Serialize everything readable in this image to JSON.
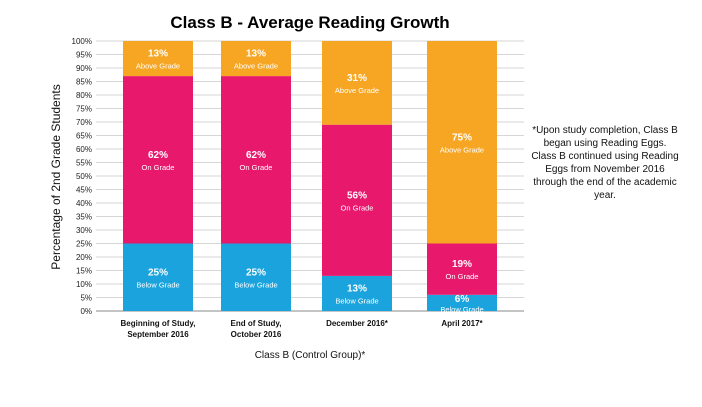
{
  "chart_data": {
    "type": "bar",
    "stacked": true,
    "title": "Class B - Average Reading Growth",
    "ylabel": "Percentage of 2nd Grade Students",
    "xlabel": "Class B (Control Group)*",
    "ylim": [
      0,
      100
    ],
    "yticks": [
      "0%",
      "5%",
      "10%",
      "15%",
      "20%",
      "25%",
      "30%",
      "35%",
      "40%",
      "45%",
      "50%",
      "55%",
      "60%",
      "65%",
      "70%",
      "75%",
      "80%",
      "85%",
      "90%",
      "95%",
      "100%"
    ],
    "grid": true,
    "categories": [
      [
        "Beginning of Study,",
        "September 2016"
      ],
      [
        "End of Study,",
        "October 2016"
      ],
      [
        "December 2016*"
      ],
      [
        "April 2017*"
      ]
    ],
    "series": [
      {
        "name": "Below Grade",
        "color": "#1aa3dc",
        "values": [
          25,
          25,
          13,
          6
        ],
        "labels": [
          "25%",
          "25%",
          "13%",
          "6%"
        ]
      },
      {
        "name": "On Grade",
        "color": "#e8186d",
        "values": [
          62,
          62,
          56,
          19
        ],
        "labels": [
          "62%",
          "62%",
          "56%",
          "19%"
        ]
      },
      {
        "name": "Above Grade",
        "color": "#f6a623",
        "values": [
          13,
          13,
          31,
          75
        ],
        "labels": [
          "13%",
          "13%",
          "31%",
          "75%"
        ]
      }
    ]
  },
  "note": "*Upon study completion, Class B began using Reading Eggs. Class B continued using Reading Eggs from November 2016 through the end of the academic year."
}
